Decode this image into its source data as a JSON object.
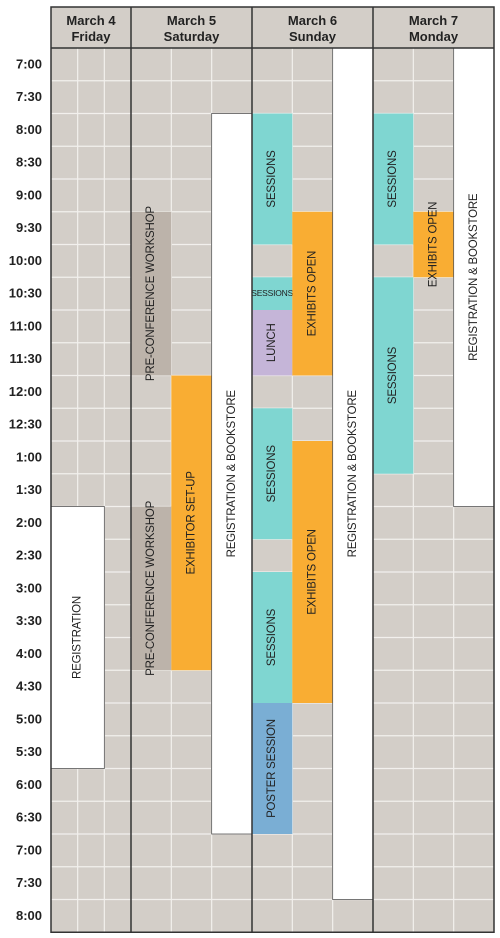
{
  "days": [
    {
      "date": "March 4",
      "weekday": "Friday"
    },
    {
      "date": "March 5",
      "weekday": "Saturday"
    },
    {
      "date": "March 6",
      "weekday": "Sunday"
    },
    {
      "date": "March 7",
      "weekday": "Monday"
    }
  ],
  "time_labels": [
    "7:00",
    "7:30",
    "8:00",
    "8:30",
    "9:00",
    "9:30",
    "10:00",
    "10:30",
    "11:00",
    "11:30",
    "12:00",
    "12:30",
    "1:00",
    "1:30",
    "2:00",
    "2:30",
    "3:00",
    "3:30",
    "4:00",
    "4:30",
    "5:00",
    "5:30",
    "6:00",
    "6:30",
    "7:00",
    "7:30",
    "8:00"
  ],
  "colors": {
    "registration": "#ffffff",
    "workshop": "#bcb3aa",
    "exhibit": "#f9ad33",
    "sessions": "#7fd6d1",
    "lunch": "#c5b5d8",
    "poster": "#7aaed4",
    "grid_bg": "#d3cec8",
    "grid_line": "#f2f0ed",
    "border": "#333333"
  },
  "events": [
    {
      "label": "REGISTRATION",
      "day": 0,
      "sub": 0,
      "span": 2,
      "start": 14,
      "end": 22,
      "kind": "registration"
    },
    {
      "label": "PRE-CONFERENCE WORKSHOP",
      "day": 1,
      "sub": 0,
      "span": 1,
      "start": 5,
      "end": 10,
      "kind": "workshop"
    },
    {
      "label": "PRE-CONFERENCE WORKSHOP",
      "day": 1,
      "sub": 0,
      "span": 1,
      "start": 14,
      "end": 19,
      "kind": "workshop"
    },
    {
      "label": "EXHIBITOR SET-UP",
      "day": 1,
      "sub": 1,
      "span": 1,
      "start": 10,
      "end": 19,
      "kind": "exhibit"
    },
    {
      "label": "REGISTRATION & BOOKSTORE",
      "day": 1,
      "sub": 2,
      "span": 1,
      "start": 2,
      "end": 24,
      "kind": "registration"
    },
    {
      "label": "SESSIONS",
      "day": 2,
      "sub": 0,
      "span": 1,
      "start": 2,
      "end": 6,
      "kind": "sessions"
    },
    {
      "label": "SESSIONS",
      "day": 2,
      "sub": 0,
      "span": 1,
      "start": 7,
      "end": 8,
      "kind": "sessions"
    },
    {
      "label": "LUNCH",
      "day": 2,
      "sub": 0,
      "span": 1,
      "start": 8,
      "end": 10,
      "kind": "lunch"
    },
    {
      "label": "SESSIONS",
      "day": 2,
      "sub": 0,
      "span": 1,
      "start": 11,
      "end": 15,
      "kind": "sessions"
    },
    {
      "label": "SESSIONS",
      "day": 2,
      "sub": 0,
      "span": 1,
      "start": 16,
      "end": 20,
      "kind": "sessions"
    },
    {
      "label": "POSTER SESSION",
      "day": 2,
      "sub": 0,
      "span": 1,
      "start": 20,
      "end": 24,
      "kind": "poster"
    },
    {
      "label": "EXHIBITS OPEN",
      "day": 2,
      "sub": 1,
      "span": 1,
      "start": 5,
      "end": 10,
      "kind": "exhibit"
    },
    {
      "label": "EXHIBITS OPEN",
      "day": 2,
      "sub": 1,
      "span": 1,
      "start": 12,
      "end": 20,
      "kind": "exhibit"
    },
    {
      "label": "REGISTRATION & BOOKSTORE",
      "day": 2,
      "sub": 2,
      "span": 1,
      "start": 0,
      "end": 26,
      "kind": "registration"
    },
    {
      "label": "SESSIONS",
      "day": 3,
      "sub": 0,
      "span": 1,
      "start": 2,
      "end": 6,
      "kind": "sessions"
    },
    {
      "label": "SESSIONS",
      "day": 3,
      "sub": 0,
      "span": 1,
      "start": 7,
      "end": 13,
      "kind": "sessions"
    },
    {
      "label": "EXHIBITS OPEN",
      "day": 3,
      "sub": 1,
      "span": 1,
      "start": 5,
      "end": 7,
      "kind": "exhibit"
    },
    {
      "label": "REGISTRATION & BOOKSTORE",
      "day": 3,
      "sub": 2,
      "span": 1,
      "start": 0,
      "end": 14,
      "kind": "registration"
    }
  ]
}
